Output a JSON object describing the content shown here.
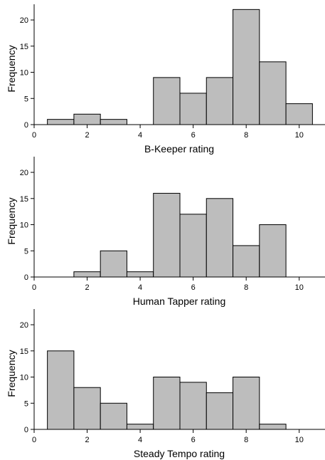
{
  "chart_data": [
    {
      "type": "bar",
      "subtype": "histogram",
      "xlabel": "B-Keeper rating",
      "ylabel": "Frequency",
      "xlim": [
        0,
        11
      ],
      "ylim": [
        0,
        23
      ],
      "xticks": [
        0,
        2,
        4,
        6,
        8,
        10
      ],
      "yticks": [
        0,
        5,
        10,
        15,
        20
      ],
      "bin_width": 1,
      "categories": [
        1,
        2,
        3,
        4,
        5,
        6,
        7,
        8,
        9,
        10
      ],
      "values": [
        1,
        2,
        1,
        0,
        9,
        6,
        9,
        22,
        12,
        4
      ],
      "fill_color": "#bdbdbd",
      "grid": false
    },
    {
      "type": "bar",
      "subtype": "histogram",
      "xlabel": "Human Tapper rating",
      "ylabel": "Frequency",
      "xlim": [
        0,
        11
      ],
      "ylim": [
        0,
        23
      ],
      "xticks": [
        0,
        2,
        4,
        6,
        8,
        10
      ],
      "yticks": [
        0,
        5,
        10,
        15,
        20
      ],
      "bin_width": 1,
      "categories": [
        1,
        2,
        3,
        4,
        5,
        6,
        7,
        8,
        9,
        10
      ],
      "values": [
        0,
        1,
        5,
        1,
        16,
        12,
        15,
        6,
        10,
        0
      ],
      "fill_color": "#bdbdbd",
      "grid": false
    },
    {
      "type": "bar",
      "subtype": "histogram",
      "xlabel": "Steady Tempo rating",
      "ylabel": "Frequency",
      "xlim": [
        0,
        11
      ],
      "ylim": [
        0,
        23
      ],
      "xticks": [
        0,
        2,
        4,
        6,
        8,
        10
      ],
      "yticks": [
        0,
        5,
        10,
        15,
        20
      ],
      "bin_width": 1,
      "categories": [
        1,
        2,
        3,
        4,
        5,
        6,
        7,
        8,
        9,
        10
      ],
      "values": [
        15,
        8,
        5,
        1,
        10,
        9,
        7,
        10,
        1,
        0
      ],
      "fill_color": "#bdbdbd",
      "grid": false
    }
  ]
}
